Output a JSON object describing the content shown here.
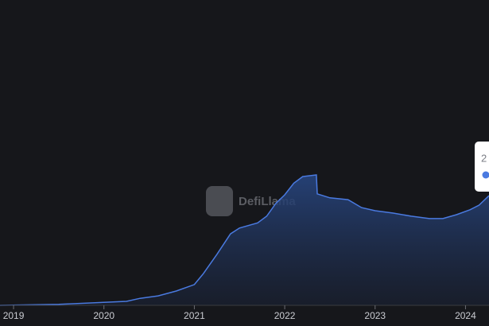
{
  "chart_data": {
    "type": "area",
    "watermark": "DefiLlama",
    "tooltip": "2",
    "color": "#4a7ae0",
    "x": [
      2018.85,
      2019.5,
      2020.0,
      2020.25,
      2020.4,
      2020.6,
      2020.8,
      2021.0,
      2021.1,
      2021.25,
      2021.4,
      2021.5,
      2021.7,
      2021.8,
      2021.9,
      2022.0,
      2022.1,
      2022.2,
      2022.35,
      2022.36,
      2022.5,
      2022.7,
      2022.85,
      2023.0,
      2023.2,
      2023.4,
      2023.6,
      2023.75,
      2023.9,
      2024.05,
      2024.15,
      2024.26
    ],
    "values": [
      0,
      0.3,
      1,
      1.3,
      2.3,
      3.1,
      4.7,
      6.8,
      10.4,
      16.7,
      23.4,
      25.3,
      27,
      29.2,
      33.3,
      36.2,
      40,
      42.2,
      42.7,
      36.5,
      35.2,
      34.6,
      32,
      31,
      30.2,
      29.2,
      28.4,
      28.4,
      29.7,
      31.3,
      32.8,
      35.9
    ],
    "xlim": [
      2018.85,
      2024.26
    ],
    "xticks": [
      2019,
      2020,
      2021,
      2022,
      2023,
      2024
    ],
    "ylim": [
      0,
      100
    ]
  }
}
